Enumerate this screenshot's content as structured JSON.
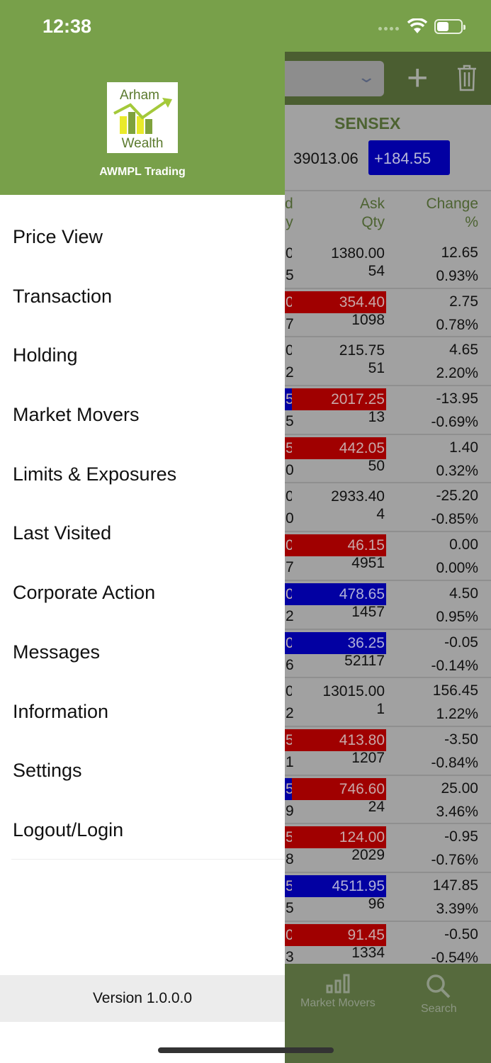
{
  "status": {
    "time": "12:38"
  },
  "drawer": {
    "brand": "AWMPL Trading",
    "logo_text": [
      "Arham",
      "Wealth"
    ],
    "menu": [
      "Price View",
      "Transaction",
      "Holding",
      "Market Movers",
      "Limits & Exposures",
      "Last Visited",
      "Corporate Action",
      "Messages",
      "Information",
      "Settings",
      "Logout/Login"
    ],
    "version": "Version 1.0.0.0"
  },
  "index": {
    "name": "SENSEX",
    "value": "39013.06",
    "change": "+184.55"
  },
  "columns": {
    "bid_qty": [
      "d",
      "y"
    ],
    "ask_qty": [
      "Ask",
      "Qty"
    ],
    "change": [
      "Change",
      "%"
    ]
  },
  "colors": {
    "red": "#a00000",
    "blue": "#0200a2",
    "header": "#4b5e31",
    "drawer_header": "#78a04a"
  },
  "rows": [
    {
      "bid": "0",
      "ask": "1380.00",
      "bid_qty": "5",
      "ask_qty": "54",
      "change": "12.65",
      "pct": "0.93%",
      "bid_color": "",
      "ask_color": ""
    },
    {
      "bid": "0",
      "ask": "354.40",
      "bid_qty": "7",
      "ask_qty": "1098",
      "change": "2.75",
      "pct": "0.78%",
      "bid_color": "red",
      "ask_color": "red"
    },
    {
      "bid": "0",
      "ask": "215.75",
      "bid_qty": "2",
      "ask_qty": "51",
      "change": "4.65",
      "pct": "2.20%",
      "bid_color": "",
      "ask_color": ""
    },
    {
      "bid": "5",
      "ask": "2017.25",
      "bid_qty": "5",
      "ask_qty": "13",
      "change": "-13.95",
      "pct": "-0.69%",
      "bid_color": "blue",
      "ask_color": "red"
    },
    {
      "bid": "5",
      "ask": "442.05",
      "bid_qty": "0",
      "ask_qty": "50",
      "change": "1.40",
      "pct": "0.32%",
      "bid_color": "red",
      "ask_color": "red"
    },
    {
      "bid": "0",
      "ask": "2933.40",
      "bid_qty": "0",
      "ask_qty": "4",
      "change": "-25.20",
      "pct": "-0.85%",
      "bid_color": "",
      "ask_color": ""
    },
    {
      "bid": "0",
      "ask": "46.15",
      "bid_qty": "7",
      "ask_qty": "4951",
      "change": "0.00",
      "pct": "0.00%",
      "bid_color": "red",
      "ask_color": "red"
    },
    {
      "bid": "0",
      "ask": "478.65",
      "bid_qty": "2",
      "ask_qty": "1457",
      "change": "4.50",
      "pct": "0.95%",
      "bid_color": "blue",
      "ask_color": "blue"
    },
    {
      "bid": "0",
      "ask": "36.25",
      "bid_qty": "6",
      "ask_qty": "52117",
      "change": "-0.05",
      "pct": "-0.14%",
      "bid_color": "blue",
      "ask_color": "blue"
    },
    {
      "bid": "0",
      "ask": "13015.00",
      "bid_qty": "2",
      "ask_qty": "1",
      "change": "156.45",
      "pct": "1.22%",
      "bid_color": "",
      "ask_color": ""
    },
    {
      "bid": "5",
      "ask": "413.80",
      "bid_qty": "1",
      "ask_qty": "1207",
      "change": "-3.50",
      "pct": "-0.84%",
      "bid_color": "red",
      "ask_color": "red"
    },
    {
      "bid": "5",
      "ask": "746.60",
      "bid_qty": "9",
      "ask_qty": "24",
      "change": "25.00",
      "pct": "3.46%",
      "bid_color": "blue",
      "ask_color": "red"
    },
    {
      "bid": "5",
      "ask": "124.00",
      "bid_qty": "8",
      "ask_qty": "2029",
      "change": "-0.95",
      "pct": "-0.76%",
      "bid_color": "red",
      "ask_color": "red"
    },
    {
      "bid": "5",
      "ask": "4511.95",
      "bid_qty": "5",
      "ask_qty": "96",
      "change": "147.85",
      "pct": "3.39%",
      "bid_color": "blue",
      "ask_color": "blue"
    },
    {
      "bid": "0",
      "ask": "91.45",
      "bid_qty": "3",
      "ask_qty": "1334",
      "change": "-0.50",
      "pct": "-0.54%",
      "bid_color": "red",
      "ask_color": "red"
    }
  ],
  "tabbar": {
    "market_movers": "Market Movers",
    "search": "Search"
  }
}
